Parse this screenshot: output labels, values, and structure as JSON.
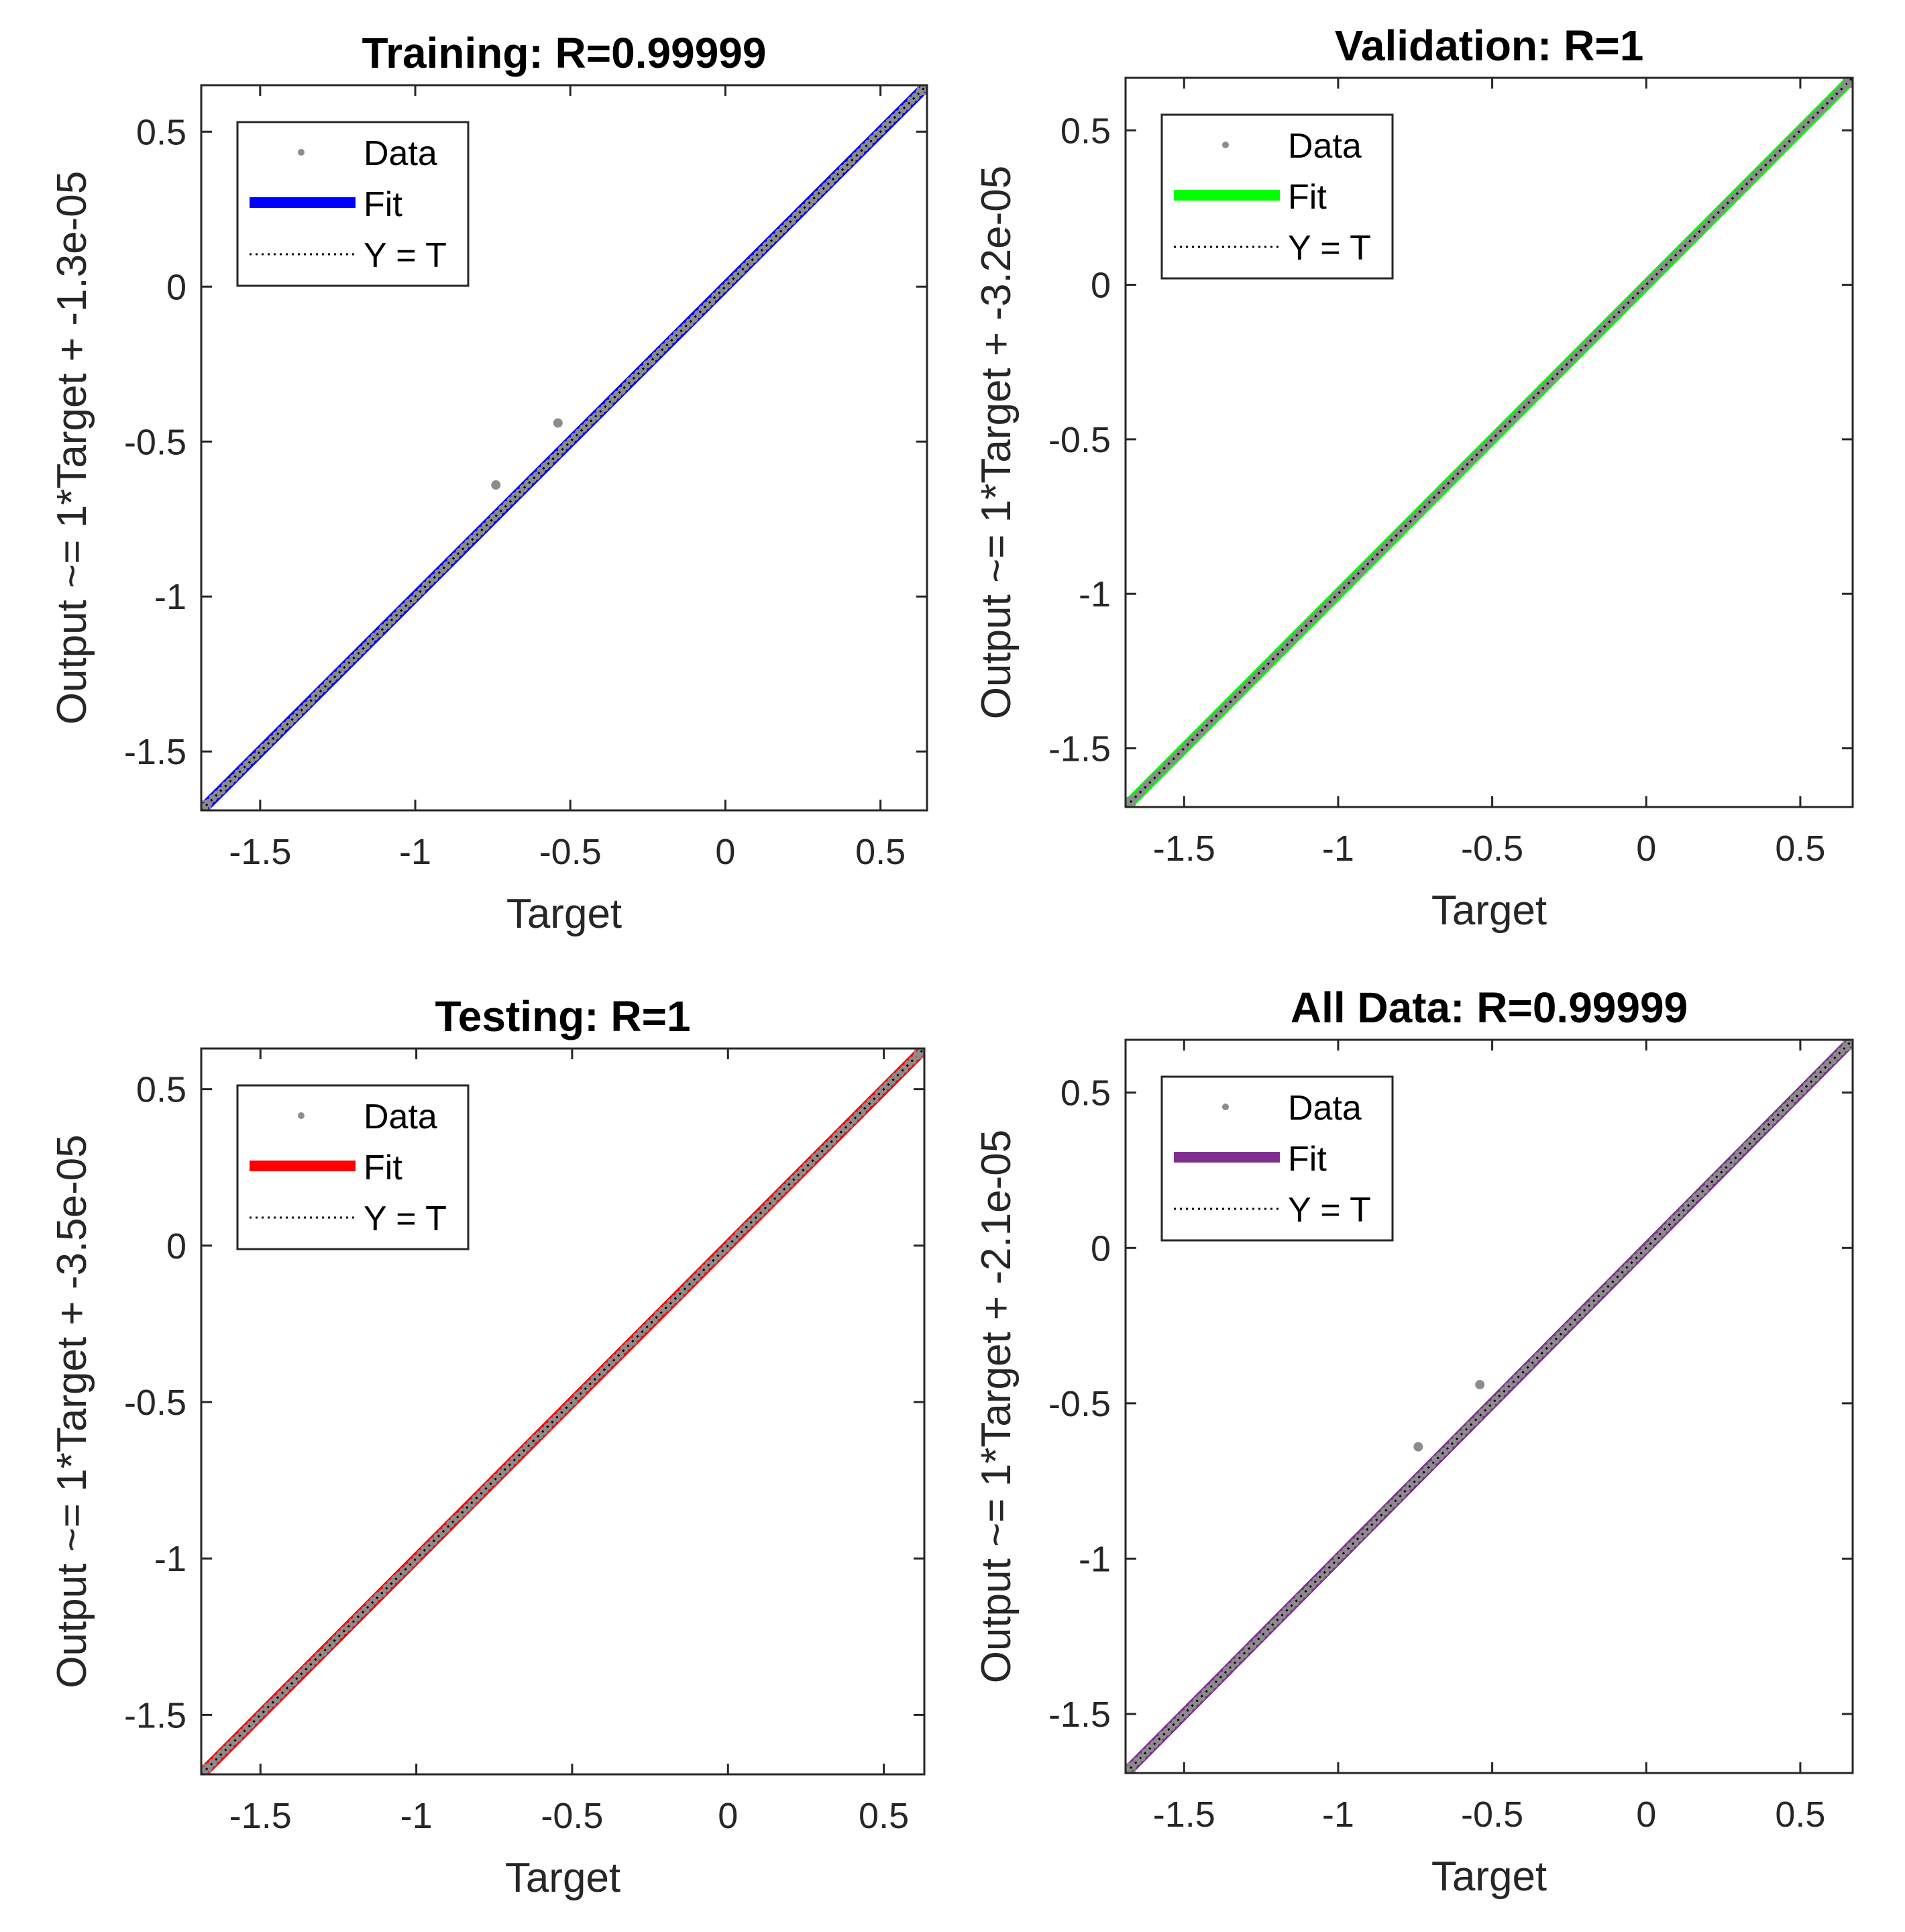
{
  "chart_data": [
    {
      "type": "scatter",
      "title": "Training: R=0.99999",
      "xlabel": "Target",
      "ylabel": "Output ~= 1*Target + -1.3e-05",
      "xlim": [
        -1.69,
        0.65
      ],
      "ylim": [
        -1.69,
        0.65
      ],
      "xticks": [
        -1.5,
        -1,
        -0.5,
        0,
        0.5
      ],
      "yticks": [
        -1.5,
        -1,
        -0.5,
        0,
        0.5
      ],
      "xtick_labels": [
        "-1.5",
        "-1",
        "-0.5",
        "0",
        "0.5"
      ],
      "ytick_labels": [
        "-1.5",
        "-1",
        "-0.5",
        "0",
        "0.5"
      ],
      "fit_color": "#0000FF",
      "fit": {
        "slope": 1,
        "intercept": -1.3e-05
      },
      "legend": [
        "Data",
        "Fit",
        "Y = T"
      ],
      "legend_position": "top-left",
      "outliers": [
        [
          -0.74,
          -0.64
        ],
        [
          -0.54,
          -0.44
        ]
      ]
    },
    {
      "type": "scatter",
      "title": "Validation: R=1",
      "xlabel": "Target",
      "ylabel": "Output ~= 1*Target + -3.2e-05",
      "xlim": [
        -1.69,
        0.67
      ],
      "ylim": [
        -1.69,
        0.67
      ],
      "xticks": [
        -1.5,
        -1,
        -0.5,
        0,
        0.5
      ],
      "yticks": [
        -1.5,
        -1,
        -0.5,
        0,
        0.5
      ],
      "xtick_labels": [
        "-1.5",
        "-1",
        "-0.5",
        "0",
        "0.5"
      ],
      "ytick_labels": [
        "-1.5",
        "-1",
        "-0.5",
        "0",
        "0.5"
      ],
      "fit_color": "#00FF00",
      "fit": {
        "slope": 1,
        "intercept": -3.2e-05
      },
      "legend": [
        "Data",
        "Fit",
        "Y = T"
      ],
      "legend_position": "top-left",
      "outliers": []
    },
    {
      "type": "scatter",
      "title": "Testing: R=1",
      "xlabel": "Target",
      "ylabel": "Output ~= 1*Target + -3.5e-05",
      "xlim": [
        -1.69,
        0.63
      ],
      "ylim": [
        -1.69,
        0.63
      ],
      "xticks": [
        -1.5,
        -1,
        -0.5,
        0,
        0.5
      ],
      "yticks": [
        -1.5,
        -1,
        -0.5,
        0,
        0.5
      ],
      "xtick_labels": [
        "-1.5",
        "-1",
        "-0.5",
        "0",
        "0.5"
      ],
      "ytick_labels": [
        "-1.5",
        "-1",
        "-0.5",
        "0",
        "0.5"
      ],
      "fit_color": "#FF0000",
      "fit": {
        "slope": 1,
        "intercept": -3.5e-05
      },
      "legend": [
        "Data",
        "Fit",
        "Y = T"
      ],
      "legend_position": "top-left",
      "outliers": []
    },
    {
      "type": "scatter",
      "title": "All Data: R=0.99999",
      "xlabel": "Target",
      "ylabel": "Output ~= 1*Target + -2.1e-05",
      "xlim": [
        -1.69,
        0.67
      ],
      "ylim": [
        -1.69,
        0.67
      ],
      "xticks": [
        -1.5,
        -1,
        -0.5,
        0,
        0.5
      ],
      "yticks": [
        -1.5,
        -1,
        -0.5,
        0,
        0.5
      ],
      "xtick_labels": [
        "-1.5",
        "-1",
        "-0.5",
        "0",
        "0.5"
      ],
      "ytick_labels": [
        "-1.5",
        "-1",
        "-0.5",
        "0",
        "0.5"
      ],
      "fit_color": "#7E2F8E",
      "fit": {
        "slope": 1,
        "intercept": -2.1e-05
      },
      "legend": [
        "Data",
        "Fit",
        "Y = T"
      ],
      "legend_position": "top-left",
      "outliers": [
        [
          -0.74,
          -0.64
        ],
        [
          -0.54,
          -0.44
        ]
      ]
    }
  ]
}
